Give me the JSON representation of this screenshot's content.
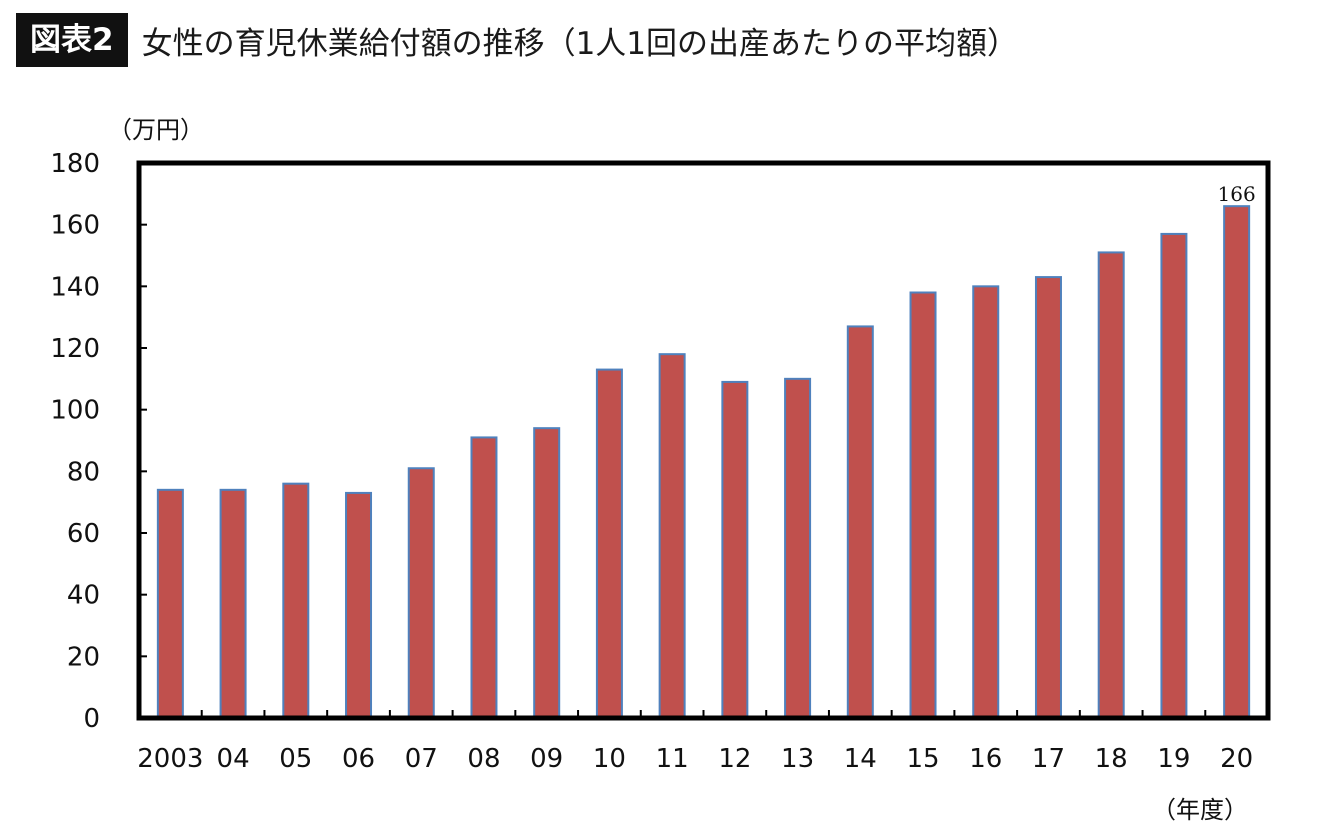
{
  "header": {
    "badge": "図表2",
    "title": "女性の育児休業給付額の推移（1人1回の出産あたりの平均額）"
  },
  "chart_data": {
    "type": "bar",
    "title": "女性の育児休業給付額の推移（1人1回の出産あたりの平均額）",
    "y_unit": "（万円）",
    "x_unit": "（年度）",
    "categories": [
      "2003",
      "04",
      "05",
      "06",
      "07",
      "08",
      "09",
      "10",
      "11",
      "12",
      "13",
      "14",
      "15",
      "16",
      "17",
      "18",
      "19",
      "20"
    ],
    "values": [
      74,
      74,
      76,
      73,
      81,
      91,
      94,
      113,
      118,
      109,
      110,
      127,
      138,
      140,
      143,
      151,
      157,
      166
    ],
    "ylim": [
      0,
      180
    ],
    "yticks": [
      0,
      20,
      40,
      60,
      80,
      100,
      120,
      140,
      160,
      180
    ],
    "data_labels": [
      {
        "index": 17,
        "text": "166"
      }
    ],
    "bar_color": "#c0504d",
    "bar_edge_color": "#4f81bd",
    "grid": false,
    "legend": "none"
  }
}
